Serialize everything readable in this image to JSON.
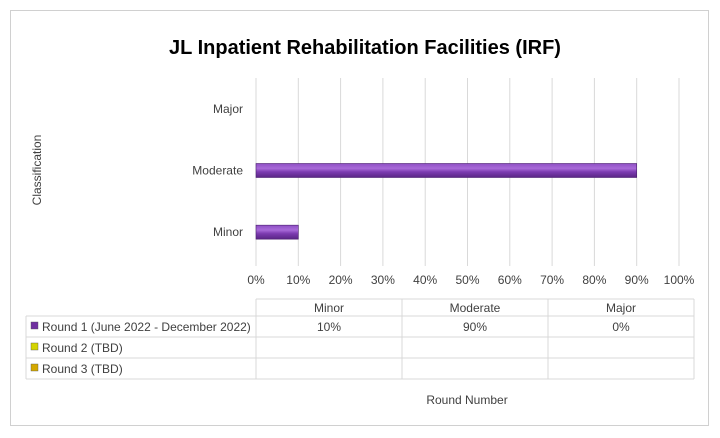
{
  "chart_data": {
    "type": "bar",
    "orientation": "horizontal",
    "title": "JL Inpatient Rehabilitation Facilities (IRF)",
    "ylabel": "Classification",
    "xlabel": "Round Number",
    "categories": [
      "Minor",
      "Moderate",
      "Major"
    ],
    "xlim": [
      0,
      100
    ],
    "x_ticks": [
      "0%",
      "10%",
      "20%",
      "30%",
      "40%",
      "50%",
      "60%",
      "70%",
      "80%",
      "90%",
      "100%"
    ],
    "grid": true,
    "legend": "data-table-below",
    "series": [
      {
        "name": "Round 1 (June 2022 - December 2022)",
        "values": [
          10,
          90,
          0
        ],
        "labels": [
          "10%",
          "90%",
          "0%"
        ],
        "color": "#7030a0"
      },
      {
        "name": "Round 2 (TBD)",
        "values": [
          null,
          null,
          null
        ],
        "labels": [
          "",
          "",
          ""
        ],
        "color": "#d4d400"
      },
      {
        "name": "Round 3 (TBD)",
        "values": [
          null,
          null,
          null
        ],
        "labels": [
          "",
          "",
          ""
        ],
        "color": "#d4a800"
      }
    ]
  }
}
